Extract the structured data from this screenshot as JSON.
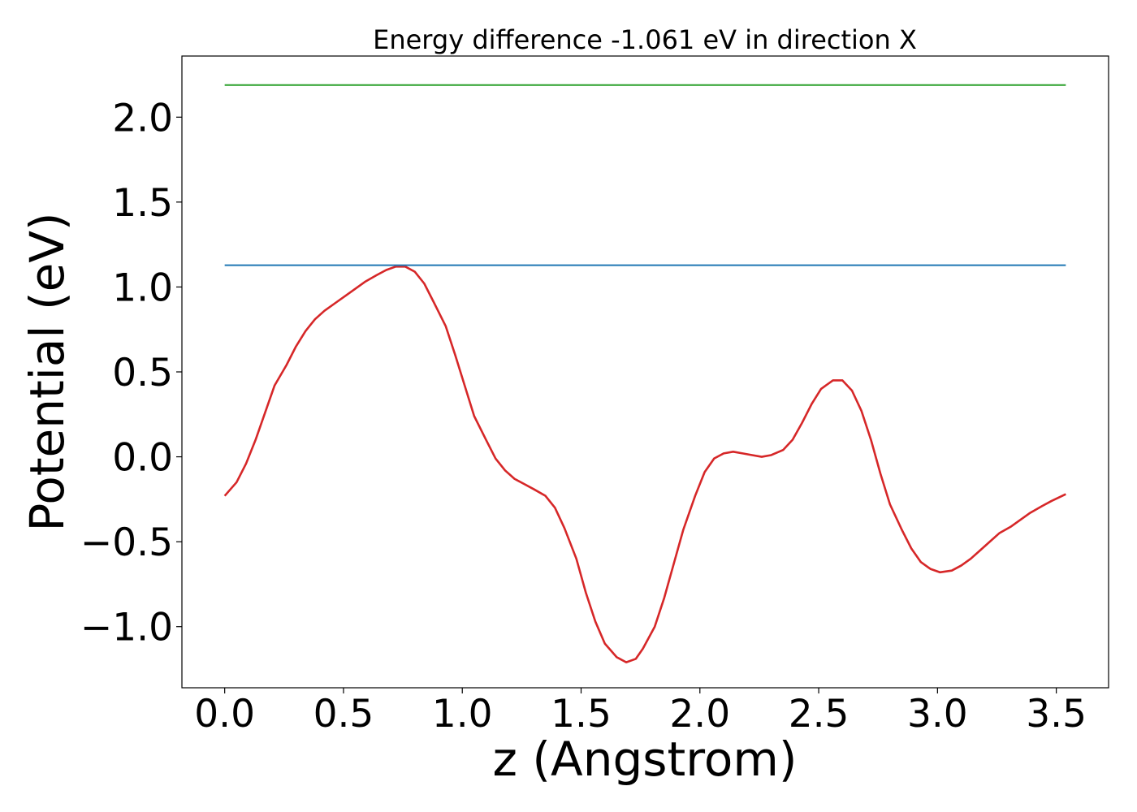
{
  "chart_data": {
    "type": "line",
    "title": "Energy difference -1.061 eV in direction X",
    "xlabel": "z (Angstrom)",
    "ylabel": "Potential (eV)",
    "xlim": [
      -0.18,
      3.72
    ],
    "ylim": [
      -1.36,
      2.36
    ],
    "xticks": [
      "0.0",
      "0.5",
      "1.0",
      "1.5",
      "2.0",
      "2.5",
      "3.0",
      "3.5"
    ],
    "yticks": [
      "−1.0",
      "−0.5",
      "0.0",
      "0.5",
      "1.0",
      "1.5",
      "2.0"
    ],
    "grid": false,
    "series": [
      {
        "color": "#d62728",
        "x": [
          0.0,
          0.05,
          0.09,
          0.13,
          0.17,
          0.21,
          0.26,
          0.3,
          0.34,
          0.38,
          0.42,
          0.47,
          0.51,
          0.55,
          0.59,
          0.64,
          0.68,
          0.72,
          0.76,
          0.8,
          0.84,
          0.88,
          0.93,
          0.97,
          1.01,
          1.05,
          1.1,
          1.14,
          1.18,
          1.22,
          1.26,
          1.3,
          1.35,
          1.39,
          1.43,
          1.48,
          1.52,
          1.56,
          1.6,
          1.65,
          1.69,
          1.73,
          1.76,
          1.81,
          1.85,
          1.89,
          1.93,
          1.98,
          2.02,
          2.06,
          2.1,
          2.14,
          2.18,
          2.22,
          2.26,
          2.3,
          2.35,
          2.39,
          2.43,
          2.47,
          2.51,
          2.56,
          2.6,
          2.64,
          2.68,
          2.72,
          2.76,
          2.8,
          2.85,
          2.89,
          2.93,
          2.97,
          3.01,
          3.06,
          3.1,
          3.14,
          3.18,
          3.22,
          3.26,
          3.31,
          3.35,
          3.39,
          3.44,
          3.48,
          3.54
        ],
        "values": [
          -0.23,
          -0.15,
          -0.04,
          0.1,
          0.26,
          0.42,
          0.54,
          0.65,
          0.74,
          0.81,
          0.86,
          0.91,
          0.95,
          0.99,
          1.03,
          1.07,
          1.1,
          1.12,
          1.12,
          1.09,
          1.02,
          0.91,
          0.77,
          0.6,
          0.42,
          0.24,
          0.1,
          -0.01,
          -0.08,
          -0.13,
          -0.16,
          -0.19,
          -0.23,
          -0.3,
          -0.42,
          -0.6,
          -0.8,
          -0.97,
          -1.1,
          -1.18,
          -1.21,
          -1.19,
          -1.13,
          -1.0,
          -0.83,
          -0.63,
          -0.43,
          -0.23,
          -0.09,
          -0.01,
          0.02,
          0.03,
          0.02,
          0.01,
          0.0,
          0.01,
          0.04,
          0.1,
          0.2,
          0.31,
          0.4,
          0.45,
          0.45,
          0.39,
          0.27,
          0.1,
          -0.1,
          -0.28,
          -0.43,
          -0.54,
          -0.62,
          -0.66,
          -0.68,
          -0.67,
          -0.64,
          -0.6,
          -0.55,
          -0.5,
          -0.45,
          -0.41,
          -0.37,
          -0.33,
          -0.29,
          -0.26,
          -0.22
        ]
      },
      {
        "color": "#1f77b4",
        "x": [
          0.0,
          3.54
        ],
        "values": [
          1.128,
          1.128
        ]
      },
      {
        "color": "#2ca02c",
        "x": [
          0.0,
          3.54
        ],
        "values": [
          2.189,
          2.189
        ]
      }
    ]
  }
}
